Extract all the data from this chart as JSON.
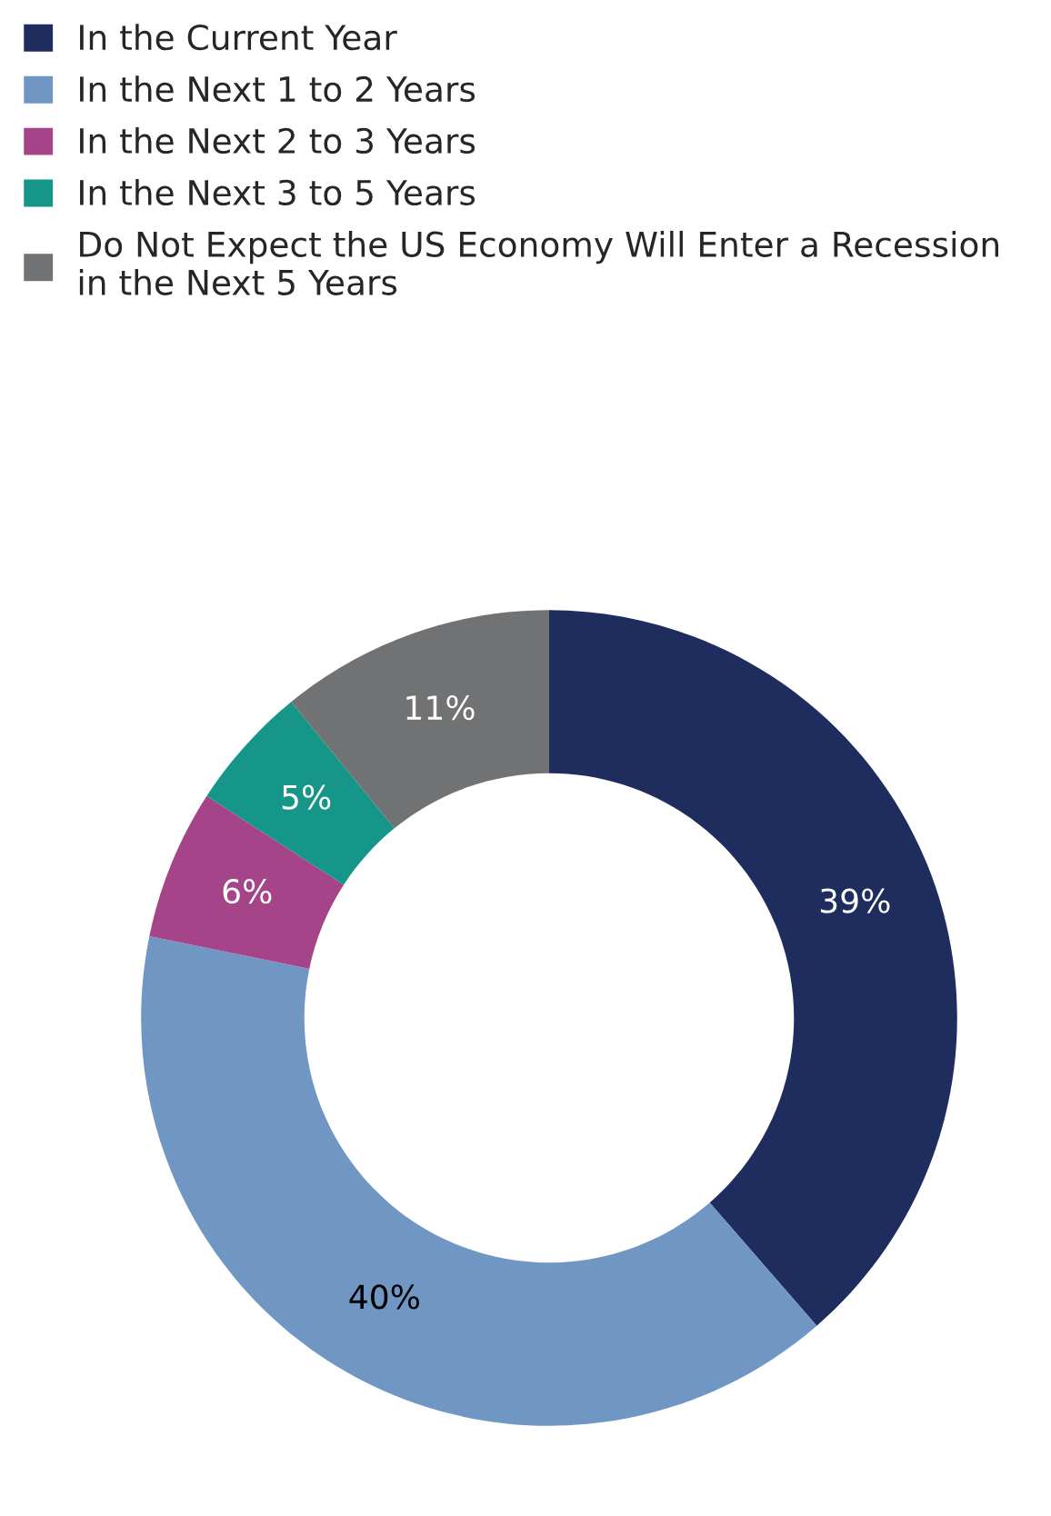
{
  "chart_data": {
    "type": "donut",
    "categories": [
      "In the Current Year",
      "In the Next 1 to 2 Years",
      "In the Next 2 to 3 Years",
      "In the Next 3 to 5 Years",
      "Do Not Expect the US Economy Will Enter a Recession\nin the Next 5 Years"
    ],
    "values": [
      39,
      40,
      6,
      5,
      11
    ],
    "colors": [
      "#1f2d5e",
      "#7097c4",
      "#a54489",
      "#169688",
      "#717274"
    ],
    "value_labels": [
      "39%",
      "40%",
      "6%",
      "5%",
      "11%"
    ],
    "legend": "top left"
  }
}
